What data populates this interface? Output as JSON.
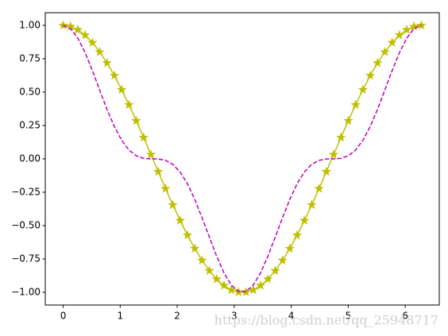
{
  "chart_data": {
    "type": "line",
    "x": [
      0,
      0.128,
      0.256,
      0.385,
      0.513,
      0.641,
      0.769,
      0.898,
      1.026,
      1.154,
      1.282,
      1.411,
      1.539,
      1.667,
      1.795,
      1.923,
      2.052,
      2.18,
      2.308,
      2.436,
      2.565,
      2.693,
      2.821,
      2.949,
      3.077,
      3.206,
      3.334,
      3.462,
      3.59,
      3.719,
      3.847,
      3.975,
      4.103,
      4.231,
      4.36,
      4.488,
      4.616,
      4.744,
      4.873,
      5.001,
      5.129,
      5.257,
      5.385,
      5.514,
      5.642,
      5.77,
      5.898,
      6.027,
      6.155,
      6.283
    ],
    "series": [
      {
        "color": "#bfbf00",
        "style": "solid",
        "marker": "star",
        "values": [
          1,
          0.992,
          0.967,
          0.927,
          0.871,
          0.801,
          0.718,
          0.624,
          0.518,
          0.405,
          0.285,
          0.16,
          0.032,
          -0.096,
          -0.223,
          -0.345,
          -0.462,
          -0.572,
          -0.672,
          -0.761,
          -0.838,
          -0.901,
          -0.949,
          -0.982,
          -0.998,
          -0.998,
          -0.982,
          -0.949,
          -0.901,
          -0.838,
          -0.761,
          -0.672,
          -0.572,
          -0.462,
          -0.345,
          -0.223,
          -0.096,
          0.032,
          0.16,
          0.285,
          0.405,
          0.518,
          0.624,
          0.718,
          0.801,
          0.871,
          0.927,
          0.967,
          0.992,
          1
        ]
      },
      {
        "color": "#bf00bf",
        "style": "dashed",
        "marker": "none",
        "values": [
          1,
          0.976,
          0.905,
          0.796,
          0.661,
          0.515,
          0.371,
          0.242,
          0.139,
          0.066,
          0.023,
          0.004,
          0.0,
          -0.001,
          -0.011,
          -0.041,
          -0.099,
          -0.187,
          -0.304,
          -0.441,
          -0.587,
          -0.73,
          -0.855,
          -0.946,
          -0.994,
          -0.994,
          -0.946,
          -0.855,
          -0.73,
          -0.587,
          -0.441,
          -0.304,
          -0.187,
          -0.099,
          -0.041,
          -0.011,
          -0.001,
          0.0,
          0.004,
          0.023,
          0.066,
          0.139,
          0.242,
          0.371,
          0.515,
          0.661,
          0.796,
          0.905,
          0.976,
          1
        ]
      }
    ],
    "xlim": [
      -0.314,
      6.597
    ],
    "xticks": [
      0,
      1,
      2,
      3,
      4,
      5,
      6
    ],
    "ylim": [
      -1.095,
      1.095
    ],
    "yticks": [
      {
        "value": -1,
        "label": "−1.00"
      },
      {
        "value": -0.75,
        "label": "−0.75"
      },
      {
        "value": -0.5,
        "label": "−0.50"
      },
      {
        "value": -0.25,
        "label": "−0.25"
      },
      {
        "value": 0,
        "label": "0.00"
      },
      {
        "value": 0.25,
        "label": "0.25"
      },
      {
        "value": 0.5,
        "label": "0.50"
      },
      {
        "value": 0.75,
        "label": "0.75"
      },
      {
        "value": 1,
        "label": "1.00"
      }
    ],
    "grid": false,
    "watermark": "https://blog.csdn.net/qq_25948717"
  }
}
